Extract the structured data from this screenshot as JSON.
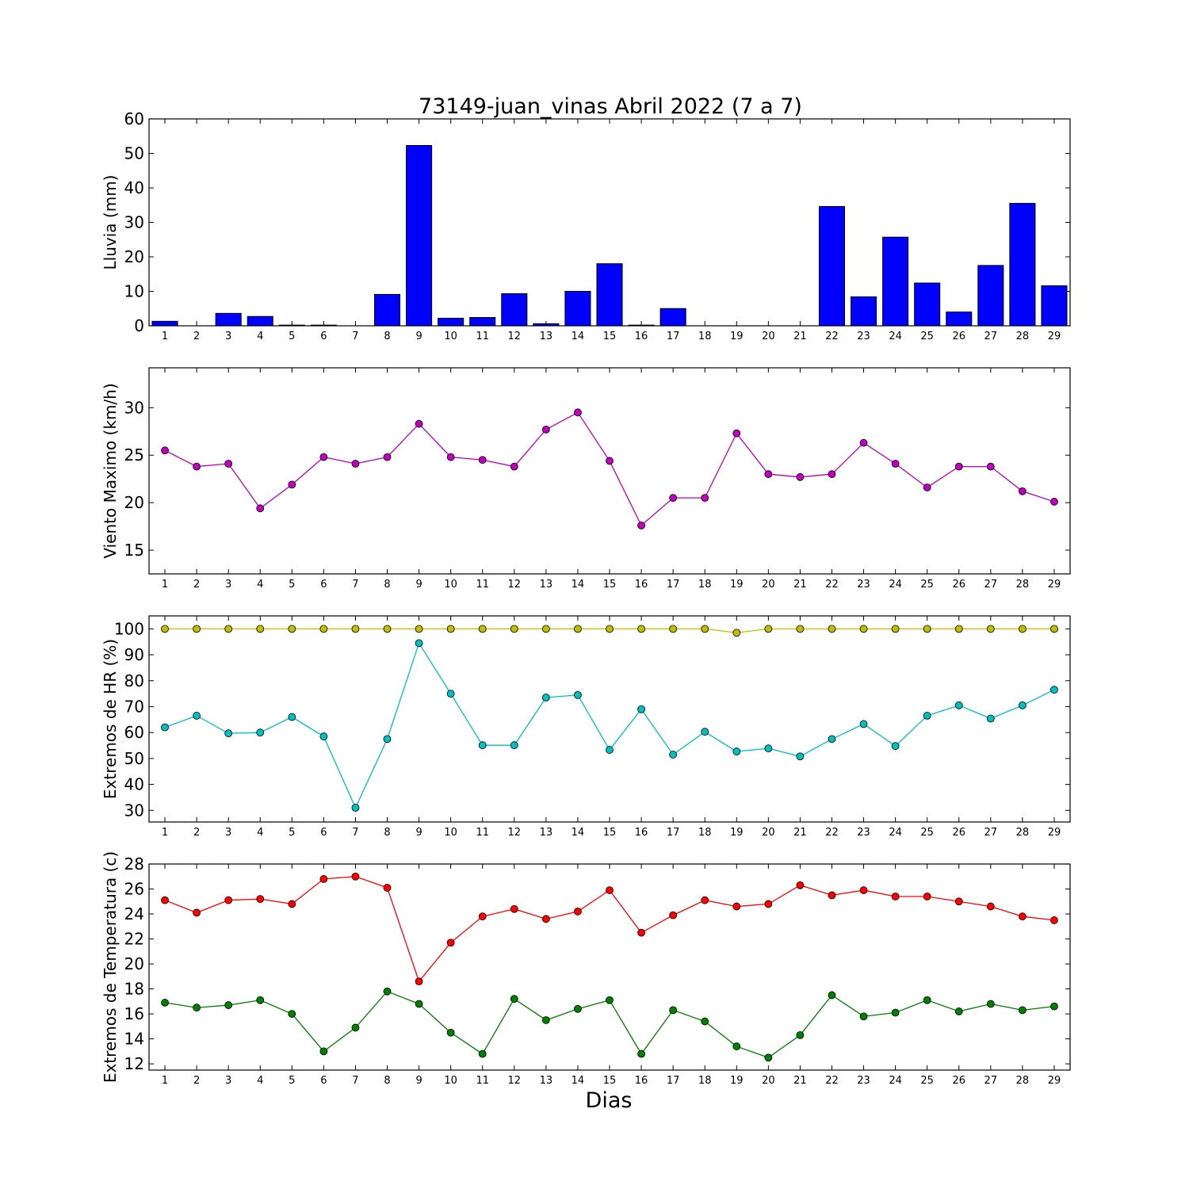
{
  "title": "73149-juan_vinas Abril 2022  (7 a 7)",
  "xlabel": "Dias",
  "chart_data": [
    {
      "type": "bar",
      "ylabel": "Lluvia (mm)",
      "ylim": [
        0,
        60
      ],
      "yticks": [
        0,
        10,
        20,
        30,
        40,
        50,
        60
      ],
      "x": [
        1,
        2,
        3,
        4,
        5,
        6,
        7,
        8,
        9,
        10,
        11,
        12,
        13,
        14,
        15,
        16,
        17,
        18,
        19,
        20,
        21,
        22,
        23,
        24,
        25,
        26,
        27,
        28,
        29
      ],
      "series": [
        {
          "color": "#0000ff",
          "values": [
            1.3,
            0,
            3.6,
            2.7,
            0.2,
            0.2,
            0,
            9.1,
            52.3,
            2.2,
            2.4,
            9.3,
            0.6,
            10.0,
            18.0,
            0.2,
            5.0,
            0,
            0,
            0,
            0,
            34.6,
            8.4,
            25.7,
            12.4,
            4.0,
            17.5,
            35.5,
            11.6
          ]
        }
      ]
    },
    {
      "type": "line",
      "ylabel": "Viento Maximo (km/h)",
      "ylim": [
        12.5,
        34.2
      ],
      "yticks": [
        15,
        20,
        25,
        30
      ],
      "x": [
        1,
        2,
        3,
        4,
        5,
        6,
        7,
        8,
        9,
        10,
        11,
        12,
        13,
        14,
        15,
        16,
        17,
        18,
        19,
        20,
        21,
        22,
        23,
        24,
        25,
        26,
        27,
        28,
        29
      ],
      "series": [
        {
          "color": "#bf00bf",
          "values": [
            25.5,
            23.8,
            24.1,
            19.4,
            21.9,
            24.8,
            24.1,
            24.8,
            28.3,
            24.8,
            24.5,
            23.8,
            27.7,
            29.5,
            24.4,
            17.6,
            20.5,
            20.5,
            27.3,
            23.0,
            22.7,
            23.0,
            26.3,
            24.1,
            21.6,
            23.8,
            23.8,
            21.2,
            20.1
          ]
        }
      ]
    },
    {
      "type": "line",
      "ylabel": "Extremos de HR (%)",
      "ylim": [
        25.5,
        105
      ],
      "yticks": [
        30,
        40,
        50,
        60,
        70,
        80,
        90,
        100
      ],
      "x": [
        1,
        2,
        3,
        4,
        5,
        6,
        7,
        8,
        9,
        10,
        11,
        12,
        13,
        14,
        15,
        16,
        17,
        18,
        19,
        20,
        21,
        22,
        23,
        24,
        25,
        26,
        27,
        28,
        29
      ],
      "series": [
        {
          "color": "#bfbf00",
          "values": [
            100,
            100,
            100,
            100,
            100,
            100,
            100,
            100,
            100,
            100,
            100,
            100,
            100,
            100,
            100,
            100,
            100,
            100,
            98.5,
            100,
            100,
            100,
            100,
            100,
            100,
            100,
            100,
            100,
            100
          ]
        },
        {
          "color": "#00bfbf",
          "values": [
            62,
            66.5,
            59.7,
            60,
            66,
            58.5,
            31,
            57.5,
            94.5,
            75,
            55.1,
            55.1,
            73.5,
            74.5,
            53.3,
            69,
            51.5,
            60.3,
            52.7,
            53.9,
            50.8,
            57.5,
            63.3,
            54.8,
            66.5,
            70.5,
            65.4,
            70.5,
            76.5
          ]
        }
      ]
    },
    {
      "type": "line",
      "ylabel": "Extremos de Temperatura (c)",
      "ylim": [
        11.5,
        28
      ],
      "yticks": [
        12,
        14,
        16,
        18,
        20,
        22,
        24,
        26,
        28
      ],
      "x": [
        1,
        2,
        3,
        4,
        5,
        6,
        7,
        8,
        9,
        10,
        11,
        12,
        13,
        14,
        15,
        16,
        17,
        18,
        19,
        20,
        21,
        22,
        23,
        24,
        25,
        26,
        27,
        28,
        29
      ],
      "series": [
        {
          "color": "#ff0000",
          "values": [
            25.1,
            24.1,
            25.1,
            25.2,
            24.8,
            26.8,
            27.0,
            26.1,
            18.6,
            21.7,
            23.8,
            24.4,
            23.6,
            24.2,
            25.9,
            22.5,
            23.9,
            25.1,
            24.6,
            24.8,
            26.3,
            25.5,
            25.9,
            25.4,
            25.4,
            25.0,
            24.6,
            23.8,
            23.5
          ]
        },
        {
          "color": "#007f00",
          "values": [
            16.9,
            16.5,
            16.7,
            17.1,
            16.0,
            13.0,
            14.9,
            17.8,
            16.8,
            14.5,
            12.8,
            17.2,
            15.5,
            16.4,
            17.1,
            12.8,
            16.3,
            15.4,
            13.4,
            12.5,
            14.3,
            17.5,
            15.8,
            16.1,
            17.1,
            16.2,
            16.8,
            16.3,
            16.6
          ]
        }
      ]
    }
  ]
}
